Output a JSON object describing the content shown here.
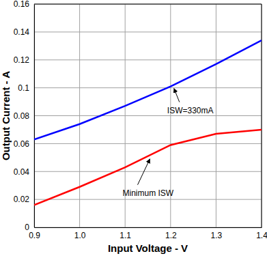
{
  "chart_data": {
    "type": "line",
    "x_label": "Input Voltage - V",
    "y_label": "Output Current - A",
    "x": [
      0.9,
      1.0,
      1.1,
      1.2,
      1.3,
      1.4
    ],
    "series": [
      {
        "name": "ISW=330mA",
        "color": "#0000ff",
        "values": [
          0.063,
          0.074,
          0.087,
          0.101,
          0.117,
          0.134
        ]
      },
      {
        "name": "Minimum ISW",
        "color": "#ff0000",
        "values": [
          0.016,
          0.029,
          0.043,
          0.059,
          0.067,
          0.07
        ]
      }
    ],
    "xlim": [
      0.9,
      1.4
    ],
    "xticks": [
      0.9,
      {
        "value": 1.0,
        "label": "1.0"
      },
      1.1,
      1.2,
      1.3,
      1.4
    ],
    "ylim": [
      0,
      0.16
    ],
    "yticks": [
      0,
      0.02,
      0.04,
      0.06,
      0.08,
      0.1,
      0.12,
      0.14,
      0.16
    ],
    "grid": true
  }
}
